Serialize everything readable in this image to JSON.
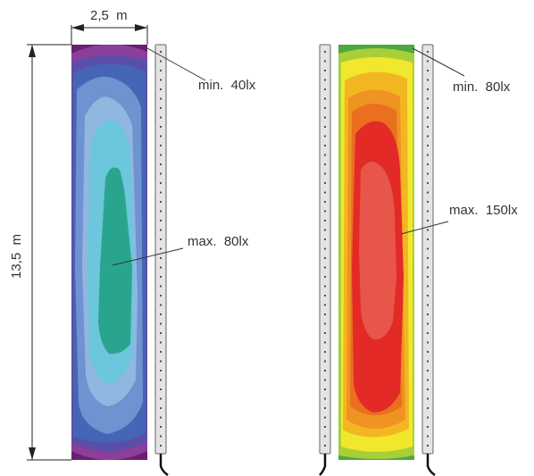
{
  "dimensions": {
    "width_label": "2,5  m",
    "height_label": "13,5  m"
  },
  "left_plot": {
    "min_label": "min.  40lx",
    "max_label": "max.  80lx",
    "colors": [
      "#6a1f6f",
      "#8a3f9a",
      "#5a4fa8",
      "#4565b5",
      "#6e93d0",
      "#8fb7e0",
      "#6cc6dc",
      "#2aa58d"
    ]
  },
  "right_plot": {
    "min_label": "min.  80lx",
    "max_label": "max.  150lx",
    "colors": [
      "#4ea83e",
      "#a6cf3a",
      "#f1e82e",
      "#f2b623",
      "#ef9322",
      "#ea6f1f",
      "#e32a26",
      "#e8564b"
    ]
  },
  "fixture": {
    "body_color": "#e4e4e4",
    "dot_color": "#444444",
    "cable_color": "#111111"
  }
}
